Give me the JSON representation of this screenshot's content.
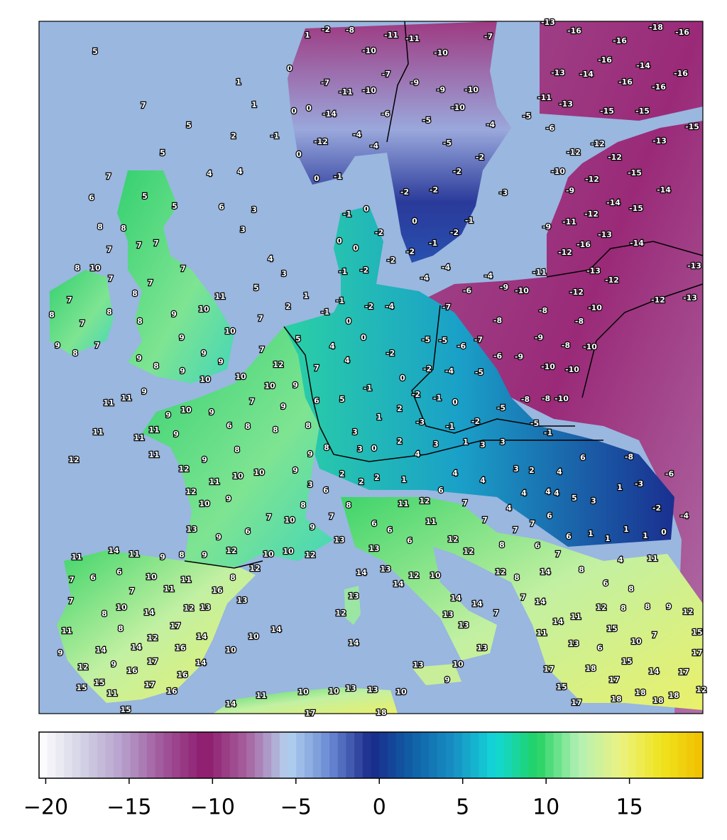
{
  "map": {
    "station_values": [
      1,
      -2,
      -8,
      -11,
      -11,
      -10,
      -10,
      -7,
      -13,
      -16,
      -18,
      -16,
      -16,
      -16,
      -13,
      -14,
      -14,
      -16,
      -16,
      -16,
      -7,
      -7,
      -11,
      -10,
      -9,
      -9,
      -10,
      -10,
      -11,
      -13,
      -15,
      -15,
      -15,
      -5,
      -6,
      -14,
      -6,
      -5,
      -4,
      -4,
      -4,
      -5,
      -12,
      -2,
      -2,
      -2,
      -2,
      -3,
      -12,
      -12,
      -12,
      -13,
      -10,
      -12,
      -15,
      -14,
      -9,
      -14,
      -15,
      -12,
      -9,
      -11,
      -13,
      -16,
      -12,
      -14,
      -13,
      -13,
      -12,
      -11,
      -12,
      -10,
      -12,
      -13,
      5,
      1,
      7,
      1,
      5,
      2,
      -1,
      5,
      4,
      4,
      7,
      6,
      5,
      5,
      6,
      3,
      3,
      8,
      8,
      7,
      7,
      7,
      4,
      3,
      8,
      10,
      7,
      7,
      7,
      7,
      8,
      8,
      8,
      7,
      11,
      10,
      5,
      1,
      2,
      9,
      8,
      7,
      10,
      9,
      8,
      7,
      9,
      9,
      9,
      9,
      8,
      9,
      10,
      10,
      7,
      5,
      4,
      4,
      7,
      10,
      9,
      6,
      5,
      12,
      9,
      11,
      11,
      7,
      9,
      11,
      11,
      11,
      9,
      11,
      9,
      10,
      9,
      6,
      8,
      8,
      8,
      12,
      9,
      8,
      9,
      8,
      12,
      11,
      10,
      10,
      9,
      12,
      10,
      9,
      7,
      10,
      8,
      3,
      6,
      13,
      9,
      6,
      9,
      7,
      8,
      2,
      2,
      2,
      1,
      3,
      0,
      2,
      3,
      1,
      2,
      -1,
      0,
      -2,
      0,
      0,
      -1,
      -1,
      -2,
      -4,
      -2,
      -4,
      -5,
      -2,
      -1,
      0,
      -3,
      -1,
      -2,
      -5,
      -5,
      -1,
      -8,
      -8,
      -10,
      -5,
      -5,
      -6,
      -7,
      -6,
      -9,
      -9,
      -8,
      -10,
      -10,
      -10,
      -8,
      -8,
      -8,
      -7,
      -6,
      -4,
      -9,
      -10,
      -4,
      -4,
      -1,
      0,
      -2,
      0,
      0,
      -2,
      -2,
      -1,
      -2,
      0,
      -1,
      -2,
      -1,
      0,
      0,
      0,
      0,
      0,
      -1,
      3,
      1,
      3,
      3,
      4,
      4,
      4,
      3,
      2,
      4,
      6,
      -8,
      -6,
      1,
      -3,
      4,
      4,
      4,
      5,
      3,
      -2,
      -4,
      0,
      1,
      1,
      1,
      1,
      6,
      6,
      7,
      4,
      7,
      7,
      7,
      6,
      12,
      11,
      11,
      6,
      6,
      6,
      13,
      13,
      12,
      12,
      8,
      6,
      7,
      8,
      6,
      4,
      11,
      12,
      8,
      14,
      13,
      12,
      10,
      14,
      14,
      13,
      14,
      14,
      7,
      14,
      13,
      7,
      13,
      12,
      14,
      13,
      13,
      10,
      9,
      8,
      8,
      8,
      9,
      12,
      12,
      14,
      11,
      11,
      15,
      10,
      7,
      15,
      13,
      6,
      17,
      15,
      17,
      18,
      14,
      17,
      17,
      15,
      17,
      18,
      18,
      18,
      18,
      12,
      11,
      14,
      11,
      9,
      8,
      9,
      12,
      10,
      10,
      12,
      12,
      7,
      6,
      6,
      10,
      11,
      8,
      7,
      11,
      16,
      13,
      7,
      10,
      8,
      14,
      12,
      13,
      8,
      17,
      14,
      10,
      14,
      11,
      12,
      14,
      14,
      9,
      16,
      10,
      9,
      17,
      14,
      12,
      16,
      16,
      15,
      15,
      11,
      17,
      16,
      15,
      14,
      11,
      10,
      10,
      13,
      13,
      10,
      17,
      18
    ],
    "colorbar": {
      "range": [
        -20.4,
        19.4
      ],
      "ticks": [
        {
          "value": -20,
          "label": "−20"
        },
        {
          "value": -15,
          "label": "−15"
        },
        {
          "value": -10,
          "label": "−10"
        },
        {
          "value": -5,
          "label": "−5"
        },
        0,
        5,
        10,
        15
      ],
      "colors": [
        "#ffffff",
        "#d4d4e6",
        "#b6a0cc",
        "#a0559a",
        "#8e1a6c",
        "#a6609e",
        "#b4d2f0",
        "#6a8ad4",
        "#1a2a8a",
        "#1060a6",
        "#1890c4",
        "#12d8d8",
        "#22d262",
        "#b2f0b4",
        "#eaf282",
        "#f0e41e",
        "#f0be00"
      ]
    }
  }
}
